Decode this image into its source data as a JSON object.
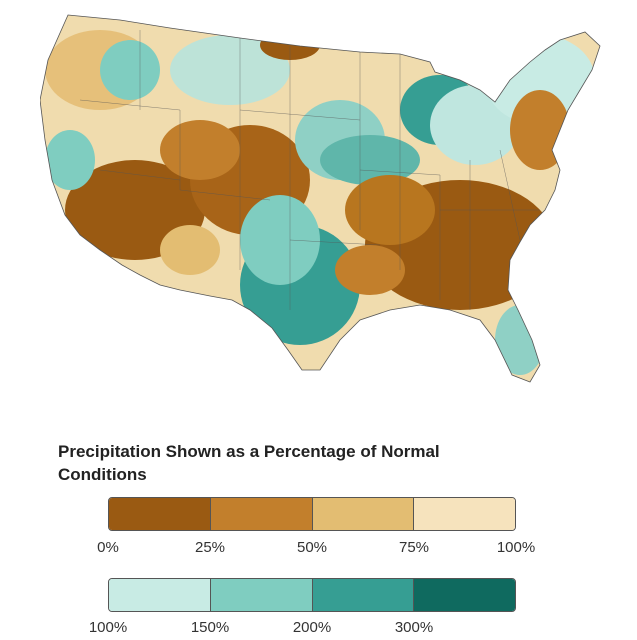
{
  "map": {
    "region": "contiguous-united-states",
    "zones": [
      {
        "id": "southwest",
        "color_class": "very-dry"
      },
      {
        "id": "central-plains",
        "color_class": "very-dry"
      },
      {
        "id": "southeast",
        "color_class": "very-dry"
      },
      {
        "id": "northwest",
        "color_class": "dry"
      },
      {
        "id": "northeast-coast",
        "color_class": "dry"
      },
      {
        "id": "texas-gulf",
        "color_class": "wet"
      },
      {
        "id": "great-lakes",
        "color_class": "very-wet"
      },
      {
        "id": "ohio-valley",
        "color_class": "wet"
      },
      {
        "id": "northern-rockies",
        "color_class": "wet"
      },
      {
        "id": "florida",
        "color_class": "moderate-wet"
      }
    ]
  },
  "legend": {
    "title": "Precipitation Shown as a Percentage of Normal Conditions",
    "dry_scale": {
      "colors": [
        "#9a5a12",
        "#c27f2c",
        "#e3bd72",
        "#f6e3bd"
      ],
      "ticks": [
        "0%",
        "25%",
        "50%",
        "75%",
        "100%"
      ]
    },
    "wet_scale": {
      "colors": [
        "#c8ebe4",
        "#7fcdc0",
        "#369e93",
        "#0f6a5f"
      ],
      "ticks": [
        "100%",
        "150%",
        "200%",
        "300%"
      ]
    }
  }
}
